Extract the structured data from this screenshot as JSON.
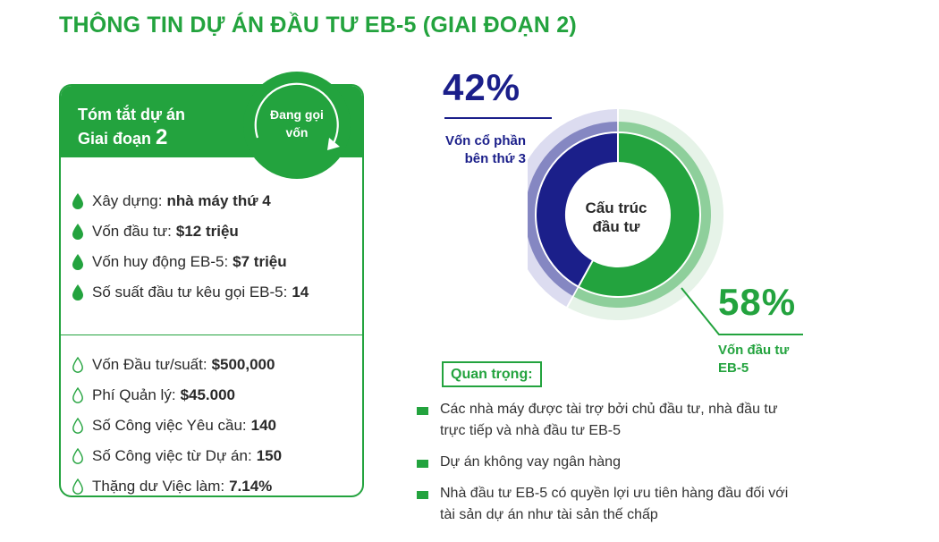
{
  "title": "THÔNG TIN DỰ ÁN ĐẦU TƯ EB-5 (GIAI ĐOẠN 2)",
  "colors": {
    "green": "#23a33e",
    "navy": "#1b1f8a",
    "pale_green": "#e6f3e8",
    "pale_navy": "#dcdcf0"
  },
  "card": {
    "header_line1": "Tóm tắt dự án",
    "header_line2": "Giai đoạn",
    "header_phase": "2",
    "status_line1": "Đang gọi",
    "status_line2": "vốn",
    "summary_items": [
      {
        "label": "Xây dựng:",
        "value": "nhà máy thứ 4",
        "icon": "filled-drop-icon"
      },
      {
        "label": "Vốn đầu tư:",
        "value": "$12 triệu",
        "icon": "filled-drop-icon"
      },
      {
        "label": "Vốn huy động EB-5:",
        "value": "$7 triệu",
        "icon": "filled-drop-icon"
      },
      {
        "label": "Số suất đầu tư kêu gọi EB-5:",
        "value": "14",
        "icon": "filled-drop-icon"
      }
    ],
    "detail_items": [
      {
        "label": "Vốn Đầu tư/suất:",
        "value": "$500,000",
        "icon": "outline-drop-icon"
      },
      {
        "label": "Phí Quản lý:",
        "value": "$45.000",
        "icon": "outline-drop-icon"
      },
      {
        "label": "Số Công việc Yêu cầu:",
        "value": "140",
        "icon": "outline-drop-icon"
      },
      {
        "label": "Số Công việc từ Dự án:",
        "value": "150",
        "icon": "outline-drop-icon"
      },
      {
        "label": "Thặng dư Việc làm:",
        "value": "7.14%",
        "icon": "outline-drop-icon"
      }
    ]
  },
  "chart_data": {
    "type": "pie",
    "title": "",
    "center_label_line1": "Cấu trúc",
    "center_label_line2": "đầu tư",
    "series": [
      {
        "name_line1": "Vốn cổ phần",
        "name_line2": "bên thứ 3",
        "percent_label": "42%",
        "value": 42,
        "color": "#1b1f8a"
      },
      {
        "name_line1": "Vốn đầu tư",
        "name_line2": "EB-5",
        "percent_label": "58%",
        "value": 58,
        "color": "#23a33e"
      }
    ]
  },
  "important": {
    "heading": "Quan trọng:",
    "notes": [
      {
        "line1": "Các nhà máy được tài trợ bởi chủ đầu tư, nhà đầu tư",
        "line2": "trực tiếp và nhà đầu tư EB-5"
      },
      {
        "line1": "Dự án không vay ngân hàng",
        "line2": ""
      },
      {
        "line1": "Nhà đầu tư EB-5 có quyền lợi ưu tiên hàng đầu đối với",
        "line2": "tài sản dự án như tài sản thế chấp"
      }
    ]
  }
}
